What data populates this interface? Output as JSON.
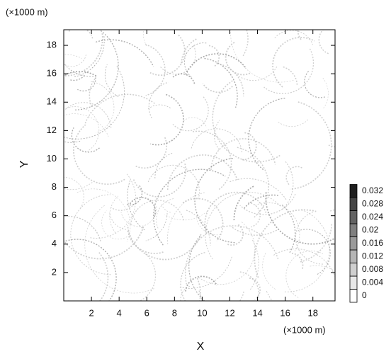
{
  "chart_data": {
    "type": "heatmap",
    "x_label": "X",
    "y_label": "Y",
    "x_unit": "(×1000 m)",
    "y_unit": "(×1000 m)",
    "xlim": [
      0,
      19.6
    ],
    "ylim": [
      0,
      19.1
    ],
    "xticks": [
      2,
      4,
      6,
      8,
      10,
      12,
      14,
      16,
      18
    ],
    "yticks": [
      2,
      4,
      6,
      8,
      10,
      12,
      14,
      16,
      18
    ],
    "colorbar": {
      "levels": [
        0,
        0.004,
        0.008,
        0.012,
        0.016,
        0.02,
        0.024,
        0.028,
        0.032
      ],
      "labels": [
        "0",
        "0.004",
        "0.008",
        "0.012",
        "0.016",
        "0.02",
        "0.024",
        "0.028",
        "0.032"
      ],
      "colors": [
        "#ffffff",
        "#e8e8e8",
        "#cfcfcf",
        "#b5b5b5",
        "#9a9a9a",
        "#7f7f7f",
        "#626262",
        "#444444",
        "#1e1e1e"
      ]
    }
  }
}
